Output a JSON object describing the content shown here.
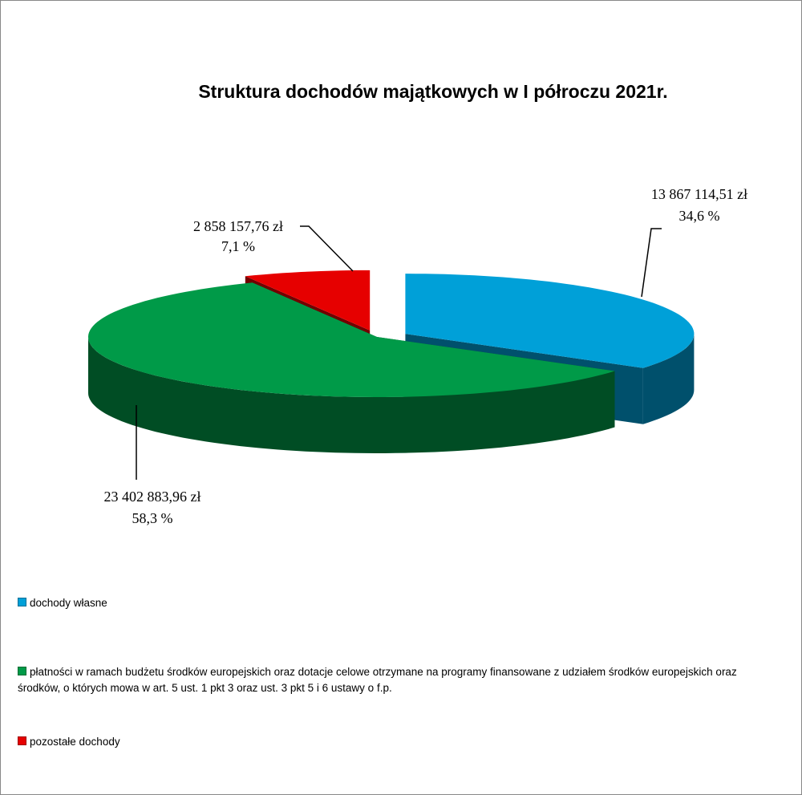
{
  "chart_data": {
    "type": "pie3d",
    "title": "Struktura dochodów majątkowych w  I półroczu 2021r.",
    "categories": [
      "dochody  własne",
      "płatności  w  ramach  budżetu  środków  europejskich oraz  dotacje  celowe  otrzymane  na  programy  finansowane z udziałem środków europejskich  oraz  środków,  o których mowa  w  art. 5  ust. 1  pkt  3  oraz  ust.  3  pkt  5  i  6  ustawy o f.p.",
      "pozostałe  dochody"
    ],
    "values": [
      34.6,
      58.3,
      7.1
    ],
    "value_labels": [
      "34,6 %",
      "58,3 %",
      "7,1 %"
    ],
    "amounts": [
      13867114.51,
      23402883.96,
      2858157.76
    ],
    "amount_labels": [
      "13 867 114,51 zł",
      "23 402 883,96  zł",
      "2 858 157,76 zł"
    ],
    "colors": [
      "#00a0d8",
      "#009a48",
      "#e60000"
    ],
    "legend": "bottom-left"
  }
}
